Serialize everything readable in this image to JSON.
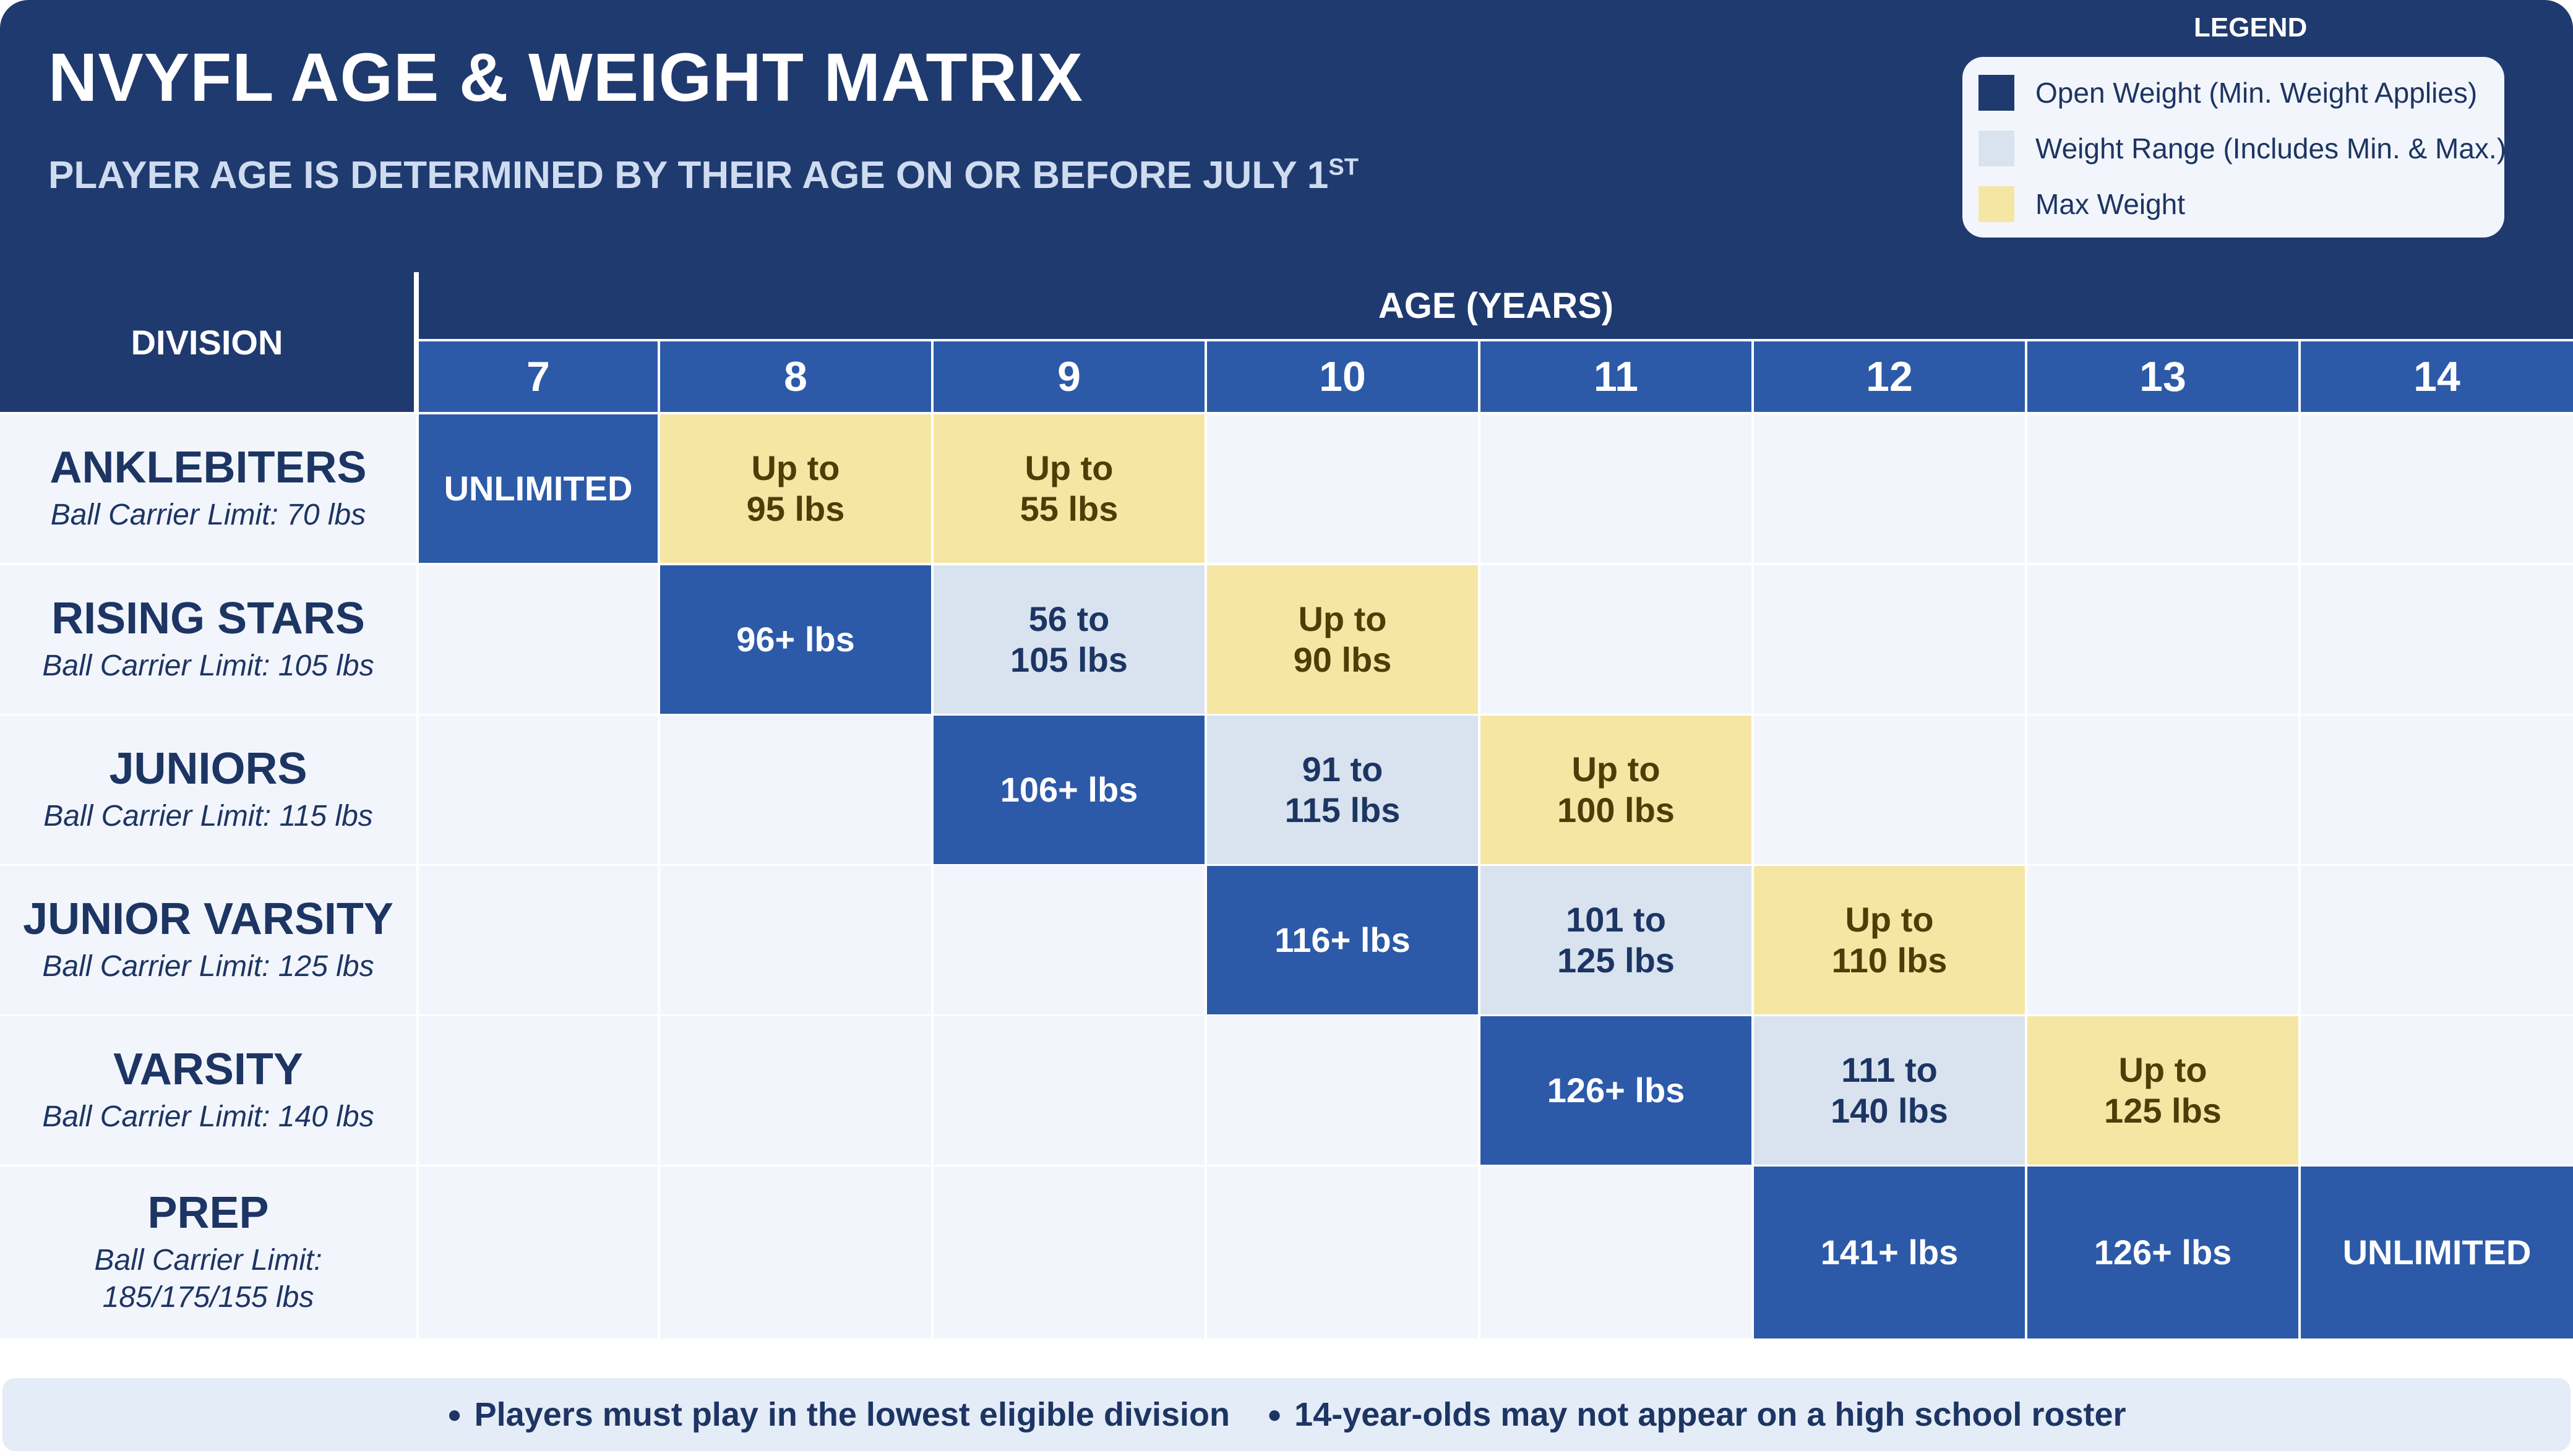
{
  "header": {
    "title": "NVYFL AGE & WEIGHT MATRIX",
    "subtitle": "PLAYER AGE IS DETERMINED BY THEIR AGE ON OR BEFORE JULY 1",
    "subtitle_sup": "ST"
  },
  "legend": {
    "title": "LEGEND",
    "items": [
      {
        "label": "Open Weight (Min. Weight Applies)",
        "color": "#1f3a6f"
      },
      {
        "label": "Weight Range (Includes Min. & Max.)",
        "color": "#d8e3ef"
      },
      {
        "label": "Max Weight",
        "color": "#f5e6a4"
      }
    ]
  },
  "table": {
    "division_header": "DIVISION",
    "age_header": "AGE (YEARS)",
    "ages": [
      "7",
      "8",
      "9",
      "10",
      "11",
      "12",
      "13",
      "14"
    ],
    "rows": [
      {
        "name": "ANKLEBITERS",
        "limit": "Ball Carrier Limit: 70 lbs",
        "cells": [
          {
            "age": "7",
            "type": "open",
            "text": "UNLIMITED"
          },
          {
            "age": "8",
            "type": "max",
            "text": "Up to\n95 lbs"
          },
          {
            "age": "9",
            "type": "max",
            "text": "Up to\n55 lbs"
          }
        ]
      },
      {
        "name": "RISING STARS",
        "limit": "Ball Carrier Limit: 105 lbs",
        "cells": [
          {
            "age": "8",
            "type": "open",
            "text": "96+ lbs"
          },
          {
            "age": "9",
            "type": "range",
            "text": "56 to\n105 lbs"
          },
          {
            "age": "10",
            "type": "max",
            "text": "Up to\n90 lbs"
          }
        ]
      },
      {
        "name": "JUNIORS",
        "limit": "Ball Carrier Limit: 115 lbs",
        "cells": [
          {
            "age": "9",
            "type": "open",
            "text": "106+ lbs"
          },
          {
            "age": "10",
            "type": "range",
            "text": "91 to\n115 lbs"
          },
          {
            "age": "11",
            "type": "max",
            "text": "Up to\n100 lbs"
          }
        ]
      },
      {
        "name": "JUNIOR VARSITY",
        "limit": "Ball Carrier Limit: 125 lbs",
        "cells": [
          {
            "age": "10",
            "type": "open",
            "text": "116+ lbs"
          },
          {
            "age": "11",
            "type": "range",
            "text": "101 to\n125 lbs"
          },
          {
            "age": "12",
            "type": "max",
            "text": "Up to\n110 lbs"
          }
        ]
      },
      {
        "name": "VARSITY",
        "limit": "Ball Carrier Limit: 140 lbs",
        "cells": [
          {
            "age": "11",
            "type": "open",
            "text": "126+ lbs"
          },
          {
            "age": "12",
            "type": "range",
            "text": "111 to\n140 lbs"
          },
          {
            "age": "13",
            "type": "max",
            "text": "Up to\n125 lbs"
          }
        ]
      },
      {
        "name": "PREP",
        "limit": "Ball Carrier Limit:\n185/175/155 lbs",
        "cells": [
          {
            "age": "12",
            "type": "open",
            "text": "141+ lbs"
          },
          {
            "age": "13",
            "type": "open",
            "text": "126+ lbs"
          },
          {
            "age": "14",
            "type": "open",
            "text": "UNLIMITED"
          }
        ]
      }
    ]
  },
  "footer": {
    "notes": [
      "Players must play in the lowest eligible division",
      "14-year-olds may not appear on a high school roster"
    ]
  }
}
